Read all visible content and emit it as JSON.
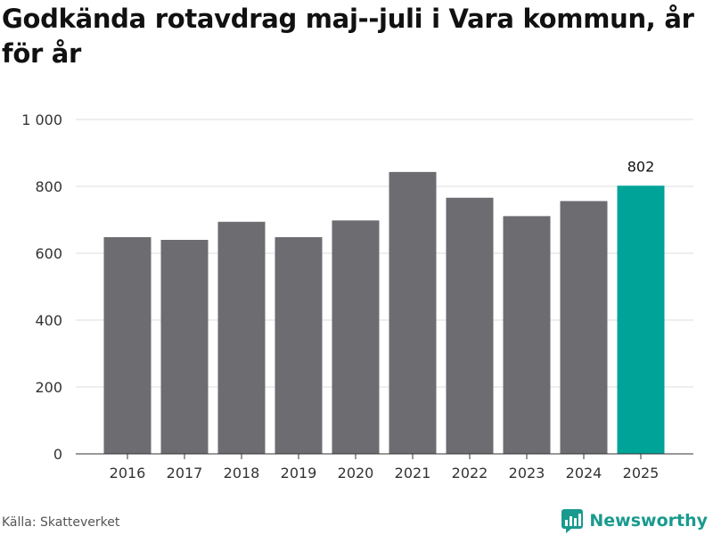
{
  "title": "Godkända rotavdrag maj--juli i Vara kommun, år för år",
  "source": "Källa: Skatteverket",
  "brand": {
    "name": "Newsworthy",
    "icon": "newsworthy-logo-icon",
    "color": "#1a9a8e"
  },
  "colors": {
    "bar": "#6d6c71",
    "highlight": "#00a398",
    "grid": "#dddddd",
    "axis": "#333333"
  },
  "chart_data": {
    "type": "bar",
    "title": "Godkända rotavdrag maj--juli i Vara kommun, år för år",
    "xlabel": "",
    "ylabel": "",
    "categories": [
      "2016",
      "2017",
      "2018",
      "2019",
      "2020",
      "2021",
      "2022",
      "2023",
      "2024",
      "2025"
    ],
    "values": [
      648,
      640,
      694,
      648,
      698,
      843,
      766,
      711,
      756,
      802
    ],
    "highlight_index": 9,
    "highlight_label": "802",
    "ylim": [
      0,
      1000
    ],
    "yticks": [
      0,
      200,
      400,
      600,
      800,
      1000
    ],
    "ytick_labels": [
      "0",
      "200",
      "400",
      "600",
      "800",
      "1 000"
    ],
    "grid": true,
    "legend": "none"
  }
}
